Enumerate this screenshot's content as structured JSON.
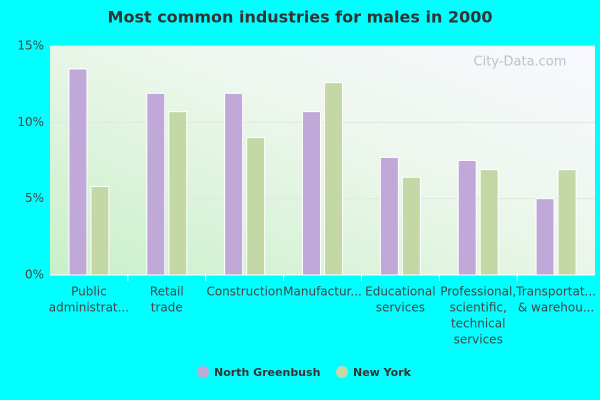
{
  "chart_data": {
    "type": "bar",
    "title": "Most common industries for males in 2000",
    "watermark": "City-Data.com",
    "categories": [
      [
        "Public",
        "administrat..."
      ],
      [
        "Retail",
        "trade"
      ],
      [
        "Construction"
      ],
      [
        "Manufactur..."
      ],
      [
        "Educational",
        "services"
      ],
      [
        "Professional,",
        "scientific,",
        "technical",
        "services"
      ],
      [
        "Transportat...",
        "& warehou..."
      ]
    ],
    "series": [
      {
        "name": "North Greenbush",
        "color": "#c0a8d8",
        "values": [
          13.5,
          11.9,
          11.9,
          10.7,
          7.7,
          7.5,
          5.0
        ]
      },
      {
        "name": "New York",
        "color": "#c4d8a6",
        "values": [
          5.8,
          10.7,
          9.0,
          12.6,
          6.4,
          6.9,
          6.9
        ]
      }
    ],
    "ylim": [
      0,
      15
    ],
    "yticks": [
      {
        "value": 0,
        "label": "0%"
      },
      {
        "value": 5,
        "label": "5%"
      },
      {
        "value": 10,
        "label": "10%"
      },
      {
        "value": 15,
        "label": "15%"
      }
    ],
    "grid": true
  }
}
